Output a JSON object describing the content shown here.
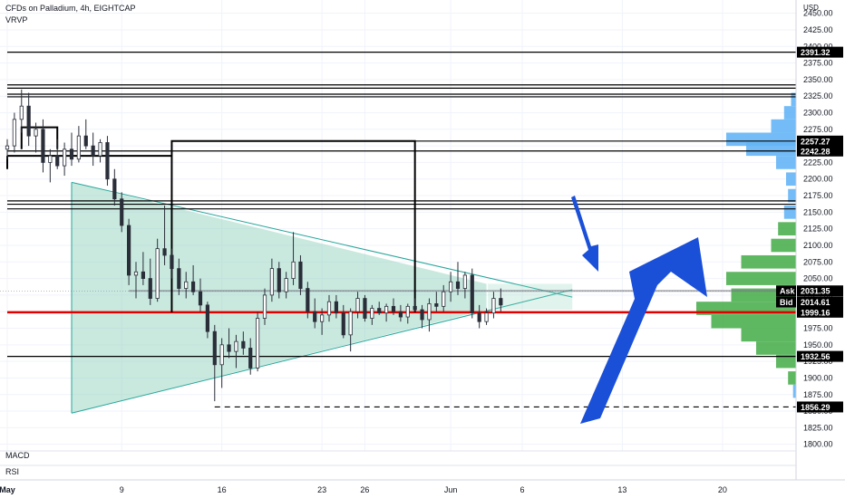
{
  "chart_data": {
    "type": "candlestick",
    "title": "CFDs on Palladium, 4h, EIGHTCAP",
    "indicator_label": "VRVP",
    "currency": "USD",
    "ylim": [
      1790,
      2470
    ],
    "y_ticks": [
      1800,
      1825,
      1850,
      1875,
      1900,
      1925,
      1950,
      1975,
      2000,
      2025,
      2050,
      2075,
      2100,
      2125,
      2150,
      2175,
      2200,
      2225,
      2250,
      2275,
      2300,
      2325,
      2350,
      2375,
      2400,
      2425,
      2450
    ],
    "y_tick_labels": [
      "1800.00",
      "1825.00",
      "1850.00",
      "1875.00",
      "1900.00",
      "1925.00",
      "1950.00",
      "1975.00",
      "2000.00",
      "2025.00",
      "2050.00",
      "2075.00",
      "2100.00",
      "2125.00",
      "2150.00",
      "2175.00",
      "2200.00",
      "2225.00",
      "2250.00",
      "2275.00",
      "2300.00",
      "2325.00",
      "2350.00",
      "2375.00",
      "2400.00",
      "2425.00",
      "2450.00"
    ],
    "x_ticks": [
      "May",
      "9",
      "16",
      "23",
      "26",
      "Jun",
      "6",
      "13",
      "20"
    ],
    "x_tick_days": [
      1,
      9,
      16,
      23,
      26,
      32,
      37,
      44,
      51
    ],
    "day_range": [
      1,
      55
    ],
    "level_tags": [
      {
        "label": "2391.32",
        "value": 2391.32,
        "color": "#000000"
      },
      {
        "label": "2257.27",
        "value": 2257.27,
        "color": "#000000"
      },
      {
        "label": "2242.28",
        "value": 2242.28,
        "color": "#000000"
      },
      {
        "label": "2031.35",
        "value": 2031.35,
        "color": "#000000",
        "prefix": "Ask"
      },
      {
        "label": "2014.61",
        "value": 2014.61,
        "color": "#000000",
        "prefix": "Bid"
      },
      {
        "label": "1999.16",
        "value": 1999.16,
        "color": "#000000"
      },
      {
        "label": "1932.56",
        "value": 1932.56,
        "color": "#000000"
      },
      {
        "label": "1856.29",
        "value": 1856.29,
        "color": "#000000"
      }
    ],
    "horizontal_lines": [
      {
        "value": 2391.32,
        "style": "solid",
        "color": "#000000",
        "from_day": 1
      },
      {
        "value": 2342,
        "style": "solid",
        "color": "#000000",
        "from_day": 1
      },
      {
        "value": 2337,
        "style": "solid",
        "color": "#000000",
        "from_day": 1
      },
      {
        "value": 2328,
        "style": "solid",
        "color": "#000000",
        "from_day": 1
      },
      {
        "value": 2324,
        "style": "solid",
        "color": "#000000",
        "from_day": 1
      },
      {
        "value": 2257.27,
        "style": "solid",
        "color": "#000000",
        "from_day": 12.5
      },
      {
        "value": 2242.28,
        "style": "solid",
        "color": "#000000",
        "from_day": 1
      },
      {
        "value": 2167,
        "style": "solid",
        "color": "#000000",
        "from_day": 1
      },
      {
        "value": 2162,
        "style": "solid",
        "color": "#000000",
        "from_day": 1
      },
      {
        "value": 2155,
        "style": "solid",
        "color": "#000000",
        "from_day": 1
      },
      {
        "value": 1999.16,
        "style": "solid",
        "color": "#e00000",
        "from_day": 1
      },
      {
        "value": 1932.56,
        "style": "solid",
        "color": "#000000",
        "from_day": 1
      },
      {
        "value": 1856.29,
        "style": "dashed",
        "color": "#000000",
        "from_day": 15.5
      }
    ],
    "box": {
      "from_day": 12.5,
      "to_day": 29.5,
      "top": 2257.27,
      "bottom": 1999.16
    },
    "triangle": {
      "points": [
        [
          5.5,
          2195
        ],
        [
          5.5,
          1847
        ],
        [
          40.5,
          2033
        ],
        [
          40.5,
          2022
        ]
      ],
      "fill": "#88cfb8"
    },
    "candles": [
      {
        "day": 1.0,
        "o": 2245,
        "h": 2260,
        "l": 2230,
        "c": 2250
      },
      {
        "day": 1.5,
        "o": 2250,
        "h": 2300,
        "l": 2240,
        "c": 2290
      },
      {
        "day": 2.0,
        "o": 2290,
        "h": 2335,
        "l": 2270,
        "c": 2310
      },
      {
        "day": 2.5,
        "o": 2310,
        "h": 2330,
        "l": 2250,
        "c": 2265
      },
      {
        "day": 3.0,
        "o": 2265,
        "h": 2285,
        "l": 2240,
        "c": 2275
      },
      {
        "day": 3.5,
        "o": 2275,
        "h": 2290,
        "l": 2210,
        "c": 2225
      },
      {
        "day": 4.0,
        "o": 2225,
        "h": 2245,
        "l": 2195,
        "c": 2235
      },
      {
        "day": 4.5,
        "o": 2235,
        "h": 2260,
        "l": 2215,
        "c": 2220
      },
      {
        "day": 5.0,
        "o": 2220,
        "h": 2255,
        "l": 2205,
        "c": 2245
      },
      {
        "day": 5.5,
        "o": 2245,
        "h": 2270,
        "l": 2220,
        "c": 2230
      },
      {
        "day": 6.0,
        "o": 2230,
        "h": 2280,
        "l": 2225,
        "c": 2265
      },
      {
        "day": 6.5,
        "o": 2265,
        "h": 2290,
        "l": 2245,
        "c": 2250
      },
      {
        "day": 7.0,
        "o": 2250,
        "h": 2270,
        "l": 2220,
        "c": 2235
      },
      {
        "day": 7.5,
        "o": 2235,
        "h": 2260,
        "l": 2225,
        "c": 2255
      },
      {
        "day": 8.0,
        "o": 2255,
        "h": 2265,
        "l": 2190,
        "c": 2200
      },
      {
        "day": 8.5,
        "o": 2200,
        "h": 2215,
        "l": 2160,
        "c": 2170
      },
      {
        "day": 9.0,
        "o": 2170,
        "h": 2180,
        "l": 2120,
        "c": 2130
      },
      {
        "day": 9.5,
        "o": 2130,
        "h": 2140,
        "l": 2040,
        "c": 2055
      },
      {
        "day": 10.0,
        "o": 2055,
        "h": 2075,
        "l": 2020,
        "c": 2060
      },
      {
        "day": 10.5,
        "o": 2060,
        "h": 2090,
        "l": 2040,
        "c": 2050
      },
      {
        "day": 11.0,
        "o": 2050,
        "h": 2080,
        "l": 2010,
        "c": 2020
      },
      {
        "day": 11.5,
        "o": 2020,
        "h": 2110,
        "l": 2015,
        "c": 2095
      },
      {
        "day": 12.0,
        "o": 2095,
        "h": 2160,
        "l": 2070,
        "c": 2085
      },
      {
        "day": 12.5,
        "o": 2085,
        "h": 2095,
        "l": 2050,
        "c": 2065
      },
      {
        "day": 13.0,
        "o": 2065,
        "h": 2080,
        "l": 2025,
        "c": 2035
      },
      {
        "day": 13.5,
        "o": 2035,
        "h": 2060,
        "l": 2020,
        "c": 2045
      },
      {
        "day": 14.0,
        "o": 2045,
        "h": 2070,
        "l": 2025,
        "c": 2030
      },
      {
        "day": 14.5,
        "o": 2030,
        "h": 2050,
        "l": 2000,
        "c": 2010
      },
      {
        "day": 15.0,
        "o": 2010,
        "h": 2015,
        "l": 1960,
        "c": 1970
      },
      {
        "day": 15.5,
        "o": 1970,
        "h": 1980,
        "l": 1865,
        "c": 1920
      },
      {
        "day": 16.0,
        "o": 1920,
        "h": 1960,
        "l": 1885,
        "c": 1950
      },
      {
        "day": 16.5,
        "o": 1950,
        "h": 1975,
        "l": 1930,
        "c": 1940
      },
      {
        "day": 17.0,
        "o": 1940,
        "h": 1965,
        "l": 1915,
        "c": 1955
      },
      {
        "day": 17.5,
        "o": 1955,
        "h": 1970,
        "l": 1935,
        "c": 1945
      },
      {
        "day": 18.0,
        "o": 1945,
        "h": 1960,
        "l": 1905,
        "c": 1915
      },
      {
        "day": 18.5,
        "o": 1915,
        "h": 2000,
        "l": 1910,
        "c": 1990
      },
      {
        "day": 19.0,
        "o": 1990,
        "h": 2035,
        "l": 1980,
        "c": 2025
      },
      {
        "day": 19.5,
        "o": 2025,
        "h": 2080,
        "l": 2015,
        "c": 2065
      },
      {
        "day": 20.0,
        "o": 2065,
        "h": 2075,
        "l": 2020,
        "c": 2030
      },
      {
        "day": 20.5,
        "o": 2030,
        "h": 2060,
        "l": 2020,
        "c": 2050
      },
      {
        "day": 21.0,
        "o": 2050,
        "h": 2120,
        "l": 2040,
        "c": 2075
      },
      {
        "day": 21.5,
        "o": 2075,
        "h": 2085,
        "l": 2025,
        "c": 2035
      },
      {
        "day": 22.0,
        "o": 2035,
        "h": 2045,
        "l": 1990,
        "c": 2000
      },
      {
        "day": 22.5,
        "o": 2000,
        "h": 2020,
        "l": 1975,
        "c": 1985
      },
      {
        "day": 23.0,
        "o": 1985,
        "h": 2005,
        "l": 1965,
        "c": 1995
      },
      {
        "day": 23.5,
        "o": 1995,
        "h": 2025,
        "l": 1985,
        "c": 2015
      },
      {
        "day": 24.0,
        "o": 2015,
        "h": 2025,
        "l": 1990,
        "c": 1998
      },
      {
        "day": 24.5,
        "o": 1998,
        "h": 2010,
        "l": 1960,
        "c": 1965
      },
      {
        "day": 25.0,
        "o": 1965,
        "h": 2005,
        "l": 1940,
        "c": 2000
      },
      {
        "day": 25.5,
        "o": 2000,
        "h": 2030,
        "l": 1990,
        "c": 2020
      },
      {
        "day": 26.0,
        "o": 2020,
        "h": 2025,
        "l": 1985,
        "c": 1990
      },
      {
        "day": 26.5,
        "o": 1990,
        "h": 2010,
        "l": 1980,
        "c": 2005
      },
      {
        "day": 27.0,
        "o": 2005,
        "h": 2015,
        "l": 1995,
        "c": 1998
      },
      {
        "day": 27.5,
        "o": 1998,
        "h": 2012,
        "l": 1985,
        "c": 2008
      },
      {
        "day": 28.0,
        "o": 2008,
        "h": 2020,
        "l": 1995,
        "c": 2000
      },
      {
        "day": 28.5,
        "o": 2000,
        "h": 2010,
        "l": 1985,
        "c": 1992
      },
      {
        "day": 29.0,
        "o": 1992,
        "h": 2012,
        "l": 1982,
        "c": 2008
      },
      {
        "day": 29.5,
        "o": 2008,
        "h": 2020,
        "l": 2000,
        "c": 2003
      },
      {
        "day": 30.0,
        "o": 2003,
        "h": 2010,
        "l": 1975,
        "c": 1988
      },
      {
        "day": 30.5,
        "o": 1988,
        "h": 2020,
        "l": 1970,
        "c": 2012
      },
      {
        "day": 31.0,
        "o": 2012,
        "h": 2030,
        "l": 2000,
        "c": 2008
      },
      {
        "day": 31.5,
        "o": 2008,
        "h": 2040,
        "l": 2000,
        "c": 2030
      },
      {
        "day": 32.0,
        "o": 2030,
        "h": 2060,
        "l": 2015,
        "c": 2045
      },
      {
        "day": 32.5,
        "o": 2045,
        "h": 2075,
        "l": 2025,
        "c": 2035
      },
      {
        "day": 33.0,
        "o": 2035,
        "h": 2060,
        "l": 2020,
        "c": 2055
      },
      {
        "day": 33.5,
        "o": 2055,
        "h": 2065,
        "l": 1990,
        "c": 1998
      },
      {
        "day": 34.0,
        "o": 1998,
        "h": 2010,
        "l": 1975,
        "c": 1985
      },
      {
        "day": 34.5,
        "o": 1985,
        "h": 2005,
        "l": 1980,
        "c": 1998
      },
      {
        "day": 35.0,
        "o": 1998,
        "h": 2030,
        "l": 1990,
        "c": 2020
      },
      {
        "day": 35.5,
        "o": 2020,
        "h": 2035,
        "l": 2000,
        "c": 2010
      }
    ],
    "volume_profile": {
      "bins": [
        {
          "price": 2320,
          "vol": 0.05,
          "color": "#64b5f6"
        },
        {
          "price": 2300,
          "vol": 0.12,
          "color": "#64b5f6"
        },
        {
          "price": 2280,
          "vol": 0.25,
          "color": "#64b5f6"
        },
        {
          "price": 2260,
          "vol": 0.7,
          "color": "#64b5f6"
        },
        {
          "price": 2245,
          "vol": 0.5,
          "color": "#64b5f6"
        },
        {
          "price": 2225,
          "vol": 0.2,
          "color": "#64b5f6"
        },
        {
          "price": 2200,
          "vol": 0.1,
          "color": "#64b5f6"
        },
        {
          "price": 2175,
          "vol": 0.08,
          "color": "#64b5f6"
        },
        {
          "price": 2150,
          "vol": 0.12,
          "color": "#64b5f6"
        },
        {
          "price": 2125,
          "vol": 0.18,
          "color": "#4caf50"
        },
        {
          "price": 2100,
          "vol": 0.25,
          "color": "#4caf50"
        },
        {
          "price": 2075,
          "vol": 0.55,
          "color": "#4caf50"
        },
        {
          "price": 2050,
          "vol": 0.7,
          "color": "#4caf50"
        },
        {
          "price": 2025,
          "vol": 0.65,
          "color": "#4caf50"
        },
        {
          "price": 2005,
          "vol": 1.0,
          "color": "#4caf50"
        },
        {
          "price": 1985,
          "vol": 0.85,
          "color": "#4caf50"
        },
        {
          "price": 1965,
          "vol": 0.55,
          "color": "#4caf50"
        },
        {
          "price": 1945,
          "vol": 0.4,
          "color": "#4caf50"
        },
        {
          "price": 1925,
          "vol": 0.2,
          "color": "#4caf50"
        },
        {
          "price": 1900,
          "vol": 0.08,
          "color": "#4caf50"
        },
        {
          "price": 1880,
          "vol": 0.03,
          "color": "#64b5f6"
        }
      ]
    },
    "arrows": [
      {
        "id": "down-arrow",
        "color": "#1a4fd8"
      },
      {
        "id": "up-arrow",
        "color": "#1a4fd8"
      }
    ]
  },
  "panes": {
    "macd_label": "MACD",
    "rsi_label": "RSI"
  }
}
